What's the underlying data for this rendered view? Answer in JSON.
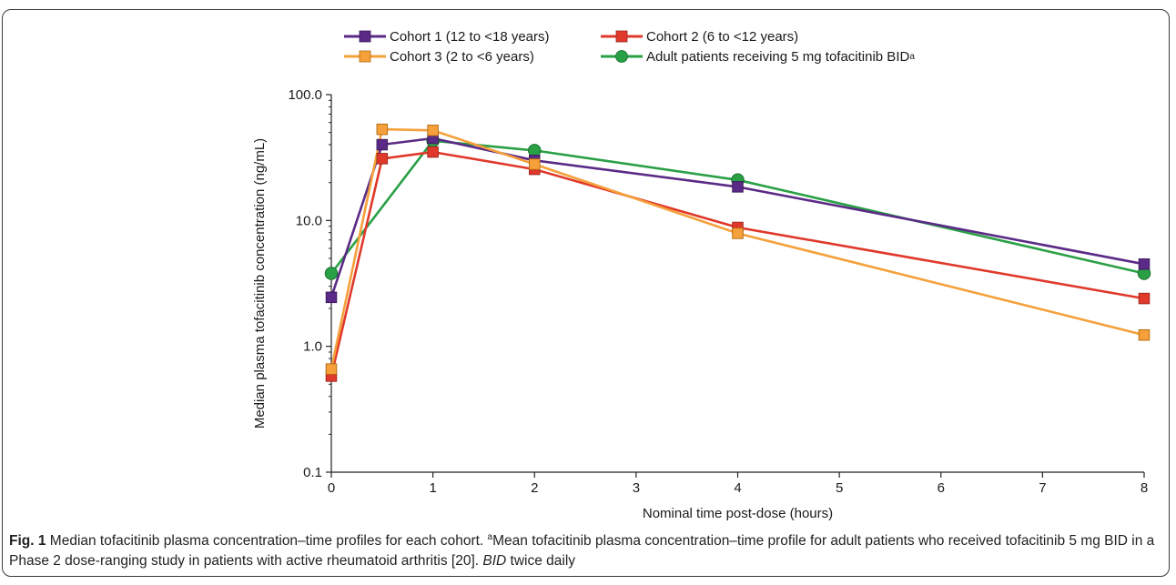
{
  "chart_data": {
    "type": "line",
    "title": "",
    "xlabel": "Nominal time post-dose (hours)",
    "ylabel": "Median plasma tofacitinib concentration (ng/mL)",
    "xlim": [
      0,
      8
    ],
    "ylim": [
      0.1,
      100
    ],
    "yscale": "log",
    "x_ticks": [
      0,
      1,
      2,
      3,
      4,
      5,
      6,
      7,
      8
    ],
    "y_ticks": [
      0.1,
      1.0,
      10.0,
      100.0
    ],
    "y_tick_labels": [
      "0.1",
      "1.0",
      "10.0",
      "100.0"
    ],
    "grid": false,
    "legend_position": "top",
    "series": [
      {
        "name": "Cohort 1 (12 to <18 years)",
        "color": "#5b2a86",
        "marker": "square",
        "x": [
          0,
          0.5,
          1,
          2,
          4,
          8
        ],
        "values": [
          2.45,
          40,
          45,
          30,
          18.5,
          4.5
        ]
      },
      {
        "name": "Cohort 2 (6 to <12 years)",
        "color": "#e0392b",
        "marker": "square",
        "x": [
          0,
          0.5,
          1,
          2,
          4,
          8
        ],
        "values": [
          0.58,
          31,
          35,
          25.5,
          8.8,
          2.4
        ]
      },
      {
        "name": "Cohort 3 (2 to <6 years)",
        "color": "#f5a03a",
        "marker": "square",
        "x": [
          0,
          0.5,
          1,
          2,
          4,
          8
        ],
        "values": [
          0.66,
          53,
          52,
          28,
          7.9,
          1.23
        ]
      },
      {
        "name": "Adult patients receiving 5 mg tofacitinib BID",
        "name_superscript": "a",
        "color": "#2aa046",
        "marker": "circle",
        "x": [
          0,
          1,
          2,
          4,
          8
        ],
        "values": [
          3.8,
          43,
          36,
          21,
          3.8
        ]
      }
    ]
  },
  "caption": {
    "label": "Fig. 1",
    "text_1": " Median tofacitinib plasma concentration–time profiles for each cohort. ",
    "sup": "a",
    "text_2": "Mean tofacitinib plasma concentration–time profile for adult patients who received tofacitinib 5 mg BID in a Phase 2 dose-ranging study in patients with active rheumatoid arthritis [20]. ",
    "abbr": "BID",
    "text_3": " twice daily"
  }
}
